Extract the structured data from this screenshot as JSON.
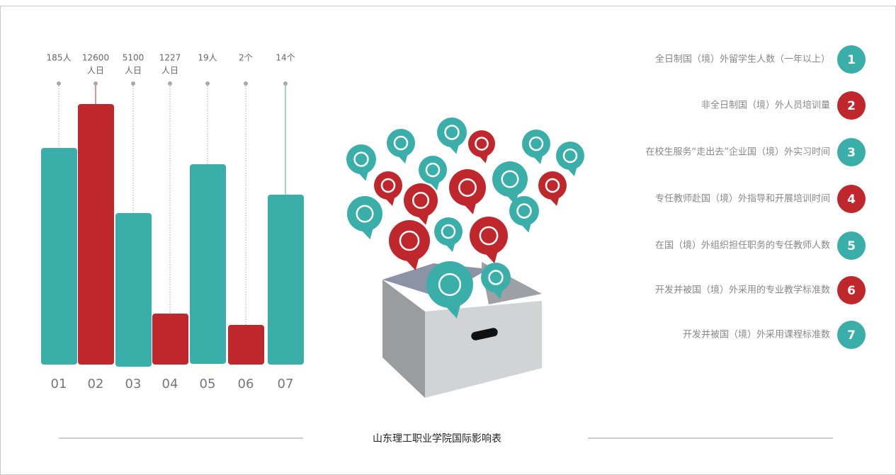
{
  "title": "山东理工职业学院国际影响表",
  "items": [
    {
      "index": "01",
      "label": [
        "185人"
      ],
      "number": "1",
      "description": "全日制国（境）外留学生人数（一年以上）"
    },
    {
      "index": "02",
      "label": [
        "12600",
        "人日"
      ],
      "number": "2",
      "description": "非全日制国（境）外人员培训量"
    },
    {
      "index": "03",
      "label": [
        "5100",
        "人日"
      ],
      "number": "3",
      "description": "在校生服务“走出去”企业国（境）外实习时间"
    },
    {
      "index": "04",
      "label": [
        "1227",
        "人日"
      ],
      "number": "4",
      "description": "专任教师赴国（境）外指导和开展培训时间"
    },
    {
      "index": "05",
      "label": [
        "19人"
      ],
      "number": "5",
      "description": "在国（境）外组织担任职务的专任教师人数"
    },
    {
      "index": "06",
      "label": [
        "2个"
      ],
      "number": "6",
      "description": "开发并被国（境）外采用的专业教学标准数"
    },
    {
      "index": "07",
      "label": [
        "14个"
      ],
      "number": "7",
      "description": "开发并被国（境）外采用课程标准数"
    }
  ]
}
